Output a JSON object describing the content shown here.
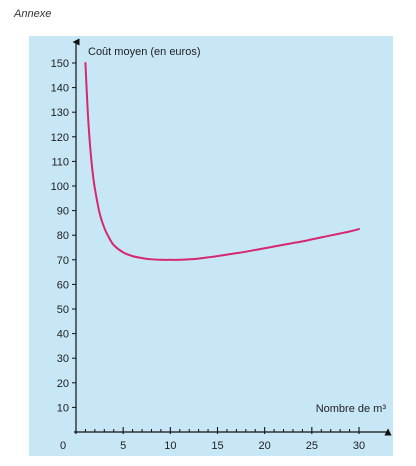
{
  "page": {
    "annex_label": "Annexe"
  },
  "chart_data": {
    "type": "line",
    "title": "",
    "ylabel": "Coût moyen (en euros)",
    "xlabel": "Nombre de m³",
    "origin_label": "0",
    "xlim": [
      0,
      32
    ],
    "ylim": [
      0,
      155
    ],
    "x_ticks": [
      5,
      10,
      15,
      20,
      25,
      30
    ],
    "x_minor_ticks": [
      1,
      2,
      3,
      4,
      6,
      7,
      8,
      9,
      11,
      12,
      13,
      14,
      16,
      17,
      18,
      19,
      21,
      22,
      23,
      24,
      26,
      27,
      28,
      29
    ],
    "y_ticks": [
      10,
      20,
      30,
      40,
      50,
      60,
      70,
      80,
      90,
      100,
      110,
      120,
      130,
      140,
      150
    ],
    "grid": false,
    "legend": "none",
    "background_color": "#c7e7f6",
    "line_color": "#d6286f",
    "axis_color": "#111111",
    "series": [
      {
        "x": [
          1,
          1.25,
          1.5,
          1.75,
          2,
          2.5,
          3,
          3.5,
          4,
          5,
          6,
          7,
          8,
          9,
          10,
          11,
          12,
          13,
          14,
          15,
          16,
          17,
          18,
          19,
          20,
          21,
          22,
          23,
          24,
          25,
          26,
          27,
          28,
          29,
          30
        ],
        "values": [
          150,
          130,
          116,
          106,
          99,
          89,
          83,
          79,
          76,
          73,
          71.5,
          70.7,
          70.2,
          70,
          70,
          70,
          70.2,
          70.5,
          71,
          71.5,
          72.1,
          72.7,
          73.3,
          74,
          74.7,
          75.4,
          76.1,
          76.8,
          77.5,
          78.3,
          79.1,
          79.9,
          80.7,
          81.5,
          82.5
        ]
      }
    ]
  }
}
